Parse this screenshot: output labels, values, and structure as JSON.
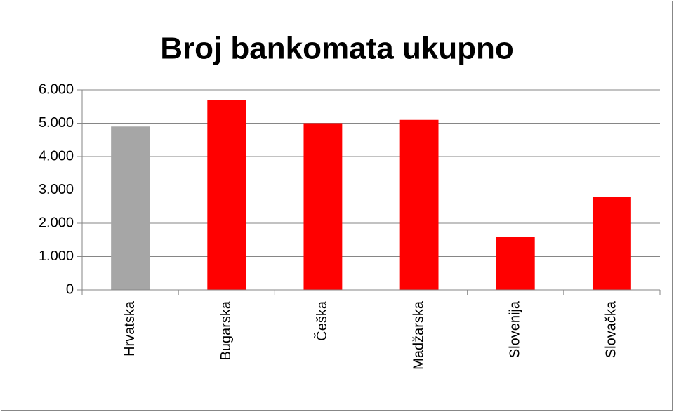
{
  "chart_data": {
    "type": "bar",
    "title": "Broj bankomata ukupno",
    "categories": [
      "Hrvatska",
      "Bugarska",
      "Češka",
      "Madžarska",
      "Slovenija",
      "Slovačka"
    ],
    "values": [
      4900,
      5700,
      5000,
      5100,
      1600,
      2800
    ],
    "colors": [
      "#a6a6a6",
      "#ff0000",
      "#ff0000",
      "#ff0000",
      "#ff0000",
      "#ff0000"
    ],
    "ylim": [
      0,
      6000
    ],
    "yticks": [
      0,
      {
        "value": 1000,
        "label": "1.000"
      },
      {
        "value": 2000,
        "label": "2.000"
      },
      {
        "value": 3000,
        "label": "3.000"
      },
      {
        "value": 4000,
        "label": "4.000"
      },
      {
        "value": 5000,
        "label": "5.000"
      },
      {
        "value": 6000,
        "label": "6.000"
      }
    ],
    "grid": true
  }
}
